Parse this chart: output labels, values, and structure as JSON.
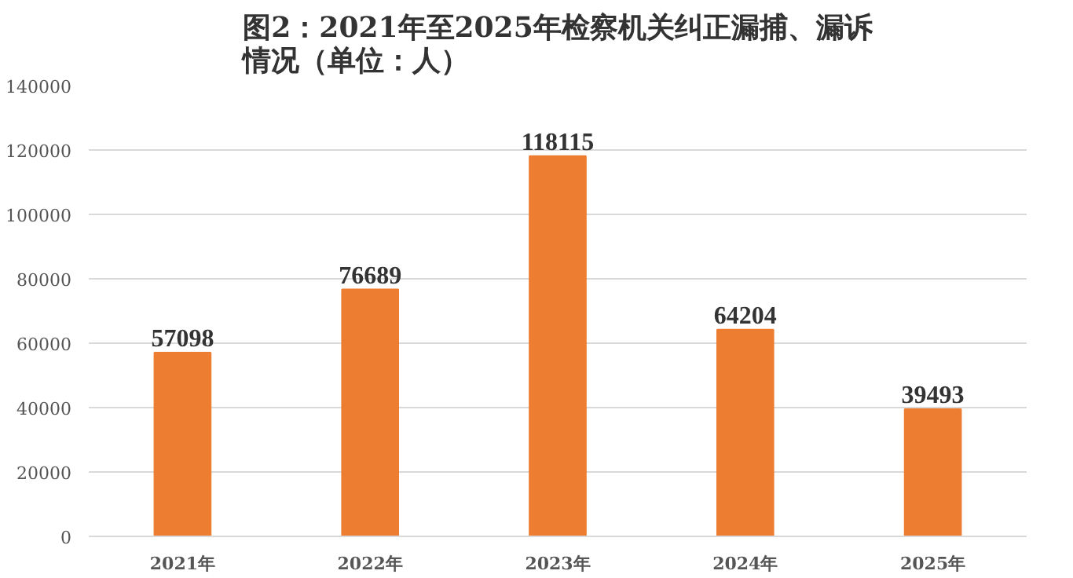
{
  "chart_data": {
    "type": "bar",
    "title": "图2：2021年至2025年检察机关纠正漏捕、漏诉情况（单位：人）",
    "categories": [
      "2021年",
      "2022年",
      "2023年",
      "2024年",
      "2025年"
    ],
    "values": [
      57098,
      76689,
      118115,
      64204,
      39493
    ],
    "color": "#ed7d31",
    "ylim": [
      0,
      140000
    ],
    "yticks": [
      0,
      20000,
      40000,
      60000,
      80000,
      100000,
      120000,
      140000
    ],
    "grid": "y",
    "data_labels": true
  }
}
